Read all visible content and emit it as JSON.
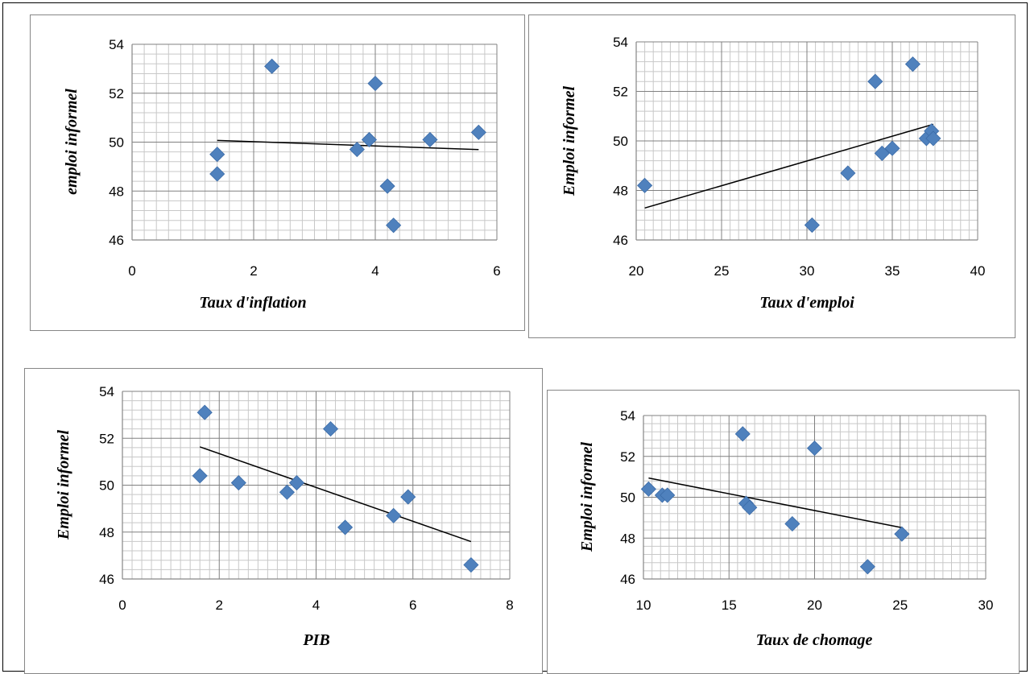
{
  "chart_data": [
    {
      "type": "scatter",
      "xlabel": "Taux d'inflation",
      "ylabel": "emploi informel",
      "xlim": [
        0,
        6
      ],
      "xticks": [
        0,
        2,
        4,
        6
      ],
      "ylim": [
        46,
        54
      ],
      "yticks": [
        46,
        48,
        50,
        52,
        54
      ],
      "grid": true,
      "trendline": true,
      "points": [
        [
          1.4,
          49.5
        ],
        [
          1.4,
          48.7
        ],
        [
          2.3,
          53.1
        ],
        [
          3.7,
          49.7
        ],
        [
          3.9,
          50.1
        ],
        [
          4.0,
          52.4
        ],
        [
          4.2,
          48.2
        ],
        [
          4.3,
          46.6
        ],
        [
          4.9,
          50.1
        ],
        [
          5.7,
          50.4
        ]
      ],
      "color": "#4F81BD"
    },
    {
      "type": "scatter",
      "xlabel": "Taux d'emploi",
      "ylabel": "Emploi informel",
      "xlim": [
        20,
        40
      ],
      "xticks": [
        20,
        25,
        30,
        35,
        40
      ],
      "ylim": [
        46,
        54
      ],
      "yticks": [
        46,
        48,
        50,
        52,
        54
      ],
      "grid": true,
      "trendline": true,
      "points": [
        [
          20.5,
          48.2
        ],
        [
          30.3,
          46.6
        ],
        [
          32.4,
          48.7
        ],
        [
          34.0,
          52.4
        ],
        [
          34.4,
          49.5
        ],
        [
          35.0,
          49.7
        ],
        [
          36.2,
          53.1
        ],
        [
          37.0,
          50.1
        ],
        [
          37.3,
          50.4
        ],
        [
          37.4,
          50.1
        ]
      ],
      "color": "#4F81BD"
    },
    {
      "type": "scatter",
      "xlabel": "PIB",
      "ylabel": "Emploi informel",
      "xlim": [
        0,
        8
      ],
      "xticks": [
        0,
        2,
        4,
        6,
        8
      ],
      "ylim": [
        46,
        54
      ],
      "yticks": [
        46,
        48,
        50,
        52,
        54
      ],
      "grid": true,
      "trendline": true,
      "points": [
        [
          1.6,
          50.4
        ],
        [
          1.7,
          53.1
        ],
        [
          2.4,
          50.1
        ],
        [
          3.4,
          49.7
        ],
        [
          3.6,
          50.1
        ],
        [
          4.3,
          52.4
        ],
        [
          4.6,
          48.2
        ],
        [
          5.6,
          48.7
        ],
        [
          5.9,
          49.5
        ],
        [
          7.2,
          46.6
        ]
      ],
      "color": "#4F81BD"
    },
    {
      "type": "scatter",
      "xlabel": "Taux de chomage",
      "ylabel": "Emploi informel",
      "xlim": [
        10,
        30
      ],
      "xticks": [
        10,
        15,
        20,
        25,
        30
      ],
      "ylim": [
        46,
        54
      ],
      "yticks": [
        46,
        48,
        50,
        52,
        54
      ],
      "grid": true,
      "trendline": true,
      "points": [
        [
          10.3,
          50.4
        ],
        [
          11.1,
          50.1
        ],
        [
          11.4,
          50.1
        ],
        [
          15.8,
          53.1
        ],
        [
          16.0,
          49.7
        ],
        [
          16.2,
          49.5
        ],
        [
          18.7,
          48.7
        ],
        [
          20.0,
          52.4
        ],
        [
          23.1,
          46.6
        ],
        [
          25.1,
          48.2
        ]
      ],
      "color": "#4F81BD"
    }
  ]
}
